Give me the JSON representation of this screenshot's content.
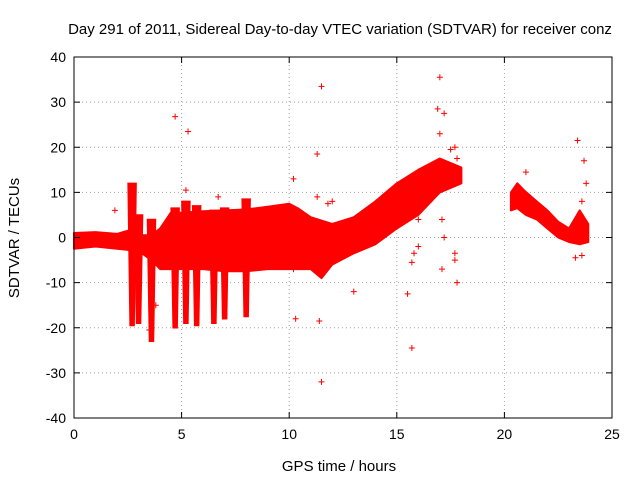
{
  "chart_data": {
    "type": "scatter",
    "title": "Day 291 of 2011, Sidereal Day-to-day VTEC variation (SDTVAR) for receiver conz",
    "xlabel": "GPS time / hours",
    "ylabel": "SDTVAR / TECUs",
    "xlim": [
      0,
      25
    ],
    "ylim": [
      -40,
      40
    ],
    "xticks": [
      0,
      5,
      10,
      15,
      20,
      25
    ],
    "yticks": [
      -40,
      -30,
      -20,
      -10,
      0,
      10,
      20,
      30,
      40
    ],
    "xtick_labels": [
      "0",
      "5",
      "10",
      "15",
      "20",
      "25"
    ],
    "ytick_labels": [
      "-40",
      "-30",
      "-20",
      "-10",
      "0",
      "10",
      "20",
      "30",
      "40"
    ],
    "grid": true,
    "marker": "+",
    "color": "#ff0000",
    "series": [
      {
        "name": "SDTVAR",
        "band_upper": [
          [
            0.0,
            1.0
          ],
          [
            1.0,
            1.2
          ],
          [
            2.0,
            0.8
          ],
          [
            2.5,
            1.5
          ],
          [
            3.0,
            0.5
          ],
          [
            3.6,
            0.5
          ],
          [
            4.0,
            2.0
          ],
          [
            4.5,
            5.5
          ],
          [
            5.0,
            5.5
          ],
          [
            6.0,
            5.8
          ],
          [
            7.0,
            6.0
          ],
          [
            8.0,
            6.2
          ],
          [
            9.0,
            6.8
          ],
          [
            10.0,
            7.5
          ],
          [
            10.4,
            6.5
          ],
          [
            11.0,
            4.5
          ],
          [
            12.0,
            3.0
          ],
          [
            13.0,
            4.5
          ],
          [
            14.0,
            8.0
          ],
          [
            15.0,
            12.0
          ],
          [
            16.0,
            15.0
          ],
          [
            17.0,
            17.5
          ],
          [
            17.5,
            16.5
          ],
          [
            18.0,
            15.5
          ]
        ],
        "band_lower": [
          [
            0.0,
            -2.5
          ],
          [
            1.0,
            -2.0
          ],
          [
            2.0,
            -2.5
          ],
          [
            3.0,
            -3.0
          ],
          [
            3.6,
            -5.0
          ],
          [
            4.0,
            -7.0
          ],
          [
            5.0,
            -7.0
          ],
          [
            6.0,
            -7.0
          ],
          [
            7.0,
            -7.5
          ],
          [
            8.0,
            -7.5
          ],
          [
            9.0,
            -7.0
          ],
          [
            10.0,
            -7.0
          ],
          [
            11.0,
            -7.0
          ],
          [
            11.5,
            -9.0
          ],
          [
            12.0,
            -6.0
          ],
          [
            13.0,
            -3.5
          ],
          [
            14.0,
            -1.5
          ],
          [
            15.0,
            2.0
          ],
          [
            16.0,
            5.0
          ],
          [
            17.0,
            10.0
          ],
          [
            18.0,
            12.0
          ]
        ],
        "band2_upper": [
          [
            20.3,
            10.0
          ],
          [
            20.6,
            12.0
          ],
          [
            20.9,
            10.5
          ],
          [
            21.5,
            8.0
          ],
          [
            22.0,
            6.0
          ],
          [
            22.5,
            3.5
          ],
          [
            23.0,
            2.0
          ],
          [
            23.5,
            6.0
          ],
          [
            23.9,
            3.0
          ]
        ],
        "band2_lower": [
          [
            20.3,
            6.0
          ],
          [
            20.6,
            6.5
          ],
          [
            21.0,
            5.0
          ],
          [
            21.5,
            4.0
          ],
          [
            22.0,
            2.0
          ],
          [
            22.5,
            0.0
          ],
          [
            23.0,
            -1.0
          ],
          [
            23.5,
            -1.5
          ],
          [
            23.9,
            -1.0
          ]
        ],
        "spikes": [
          {
            "x": 2.7,
            "top": 12.0,
            "bottom": -19.5
          },
          {
            "x": 3.0,
            "top": 5.0,
            "bottom": -19.0
          },
          {
            "x": 3.6,
            "top": 4.0,
            "bottom": -23.0
          },
          {
            "x": 4.7,
            "top": 6.5,
            "bottom": -20.0
          },
          {
            "x": 5.2,
            "top": 8.0,
            "bottom": -19.0
          },
          {
            "x": 5.7,
            "top": 7.0,
            "bottom": -19.5
          },
          {
            "x": 6.5,
            "top": 6.0,
            "bottom": -19.0
          },
          {
            "x": 7.0,
            "top": 6.5,
            "bottom": -18.0
          },
          {
            "x": 8.0,
            "top": 8.5,
            "bottom": -17.5
          }
        ],
        "outliers": [
          [
            1.9,
            6.0
          ],
          [
            2.2,
            -2.0
          ],
          [
            3.5,
            -20.5
          ],
          [
            3.8,
            -15.0
          ],
          [
            4.7,
            26.8
          ],
          [
            5.3,
            23.5
          ],
          [
            5.2,
            10.5
          ],
          [
            6.7,
            9.0
          ],
          [
            10.2,
            13.0
          ],
          [
            10.2,
            -7.0
          ],
          [
            10.3,
            -18.0
          ],
          [
            11.3,
            18.5
          ],
          [
            11.5,
            33.5
          ],
          [
            11.5,
            -32.0
          ],
          [
            11.4,
            -18.5
          ],
          [
            11.3,
            9.0
          ],
          [
            11.8,
            7.5
          ],
          [
            12.0,
            8.0
          ],
          [
            13.0,
            -12.0
          ],
          [
            15.5,
            -12.5
          ],
          [
            15.7,
            -24.5
          ],
          [
            15.7,
            -5.5
          ],
          [
            15.8,
            -3.5
          ],
          [
            16.0,
            4.0
          ],
          [
            17.0,
            35.5
          ],
          [
            16.9,
            28.5
          ],
          [
            17.2,
            27.5
          ],
          [
            17.0,
            23.0
          ],
          [
            17.5,
            19.5
          ],
          [
            17.7,
            20.0
          ],
          [
            17.8,
            17.5
          ],
          [
            17.7,
            -3.5
          ],
          [
            17.7,
            -5.0
          ],
          [
            17.8,
            -10.0
          ],
          [
            17.1,
            4.0
          ],
          [
            17.1,
            -7.0
          ],
          [
            17.2,
            0.0
          ],
          [
            16.0,
            -2.0
          ],
          [
            21.0,
            14.5
          ],
          [
            21.2,
            8.0
          ],
          [
            23.4,
            21.5
          ],
          [
            23.7,
            17.0
          ],
          [
            23.8,
            12.0
          ],
          [
            23.6,
            8.0
          ],
          [
            23.3,
            -4.5
          ],
          [
            23.6,
            -4.0
          ]
        ]
      }
    ]
  }
}
